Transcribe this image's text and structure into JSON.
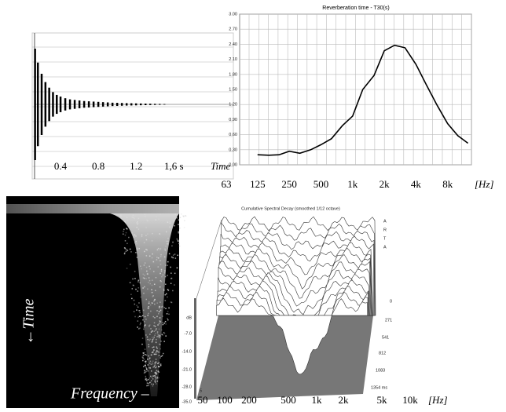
{
  "chart_data": [
    {
      "type": "impulse",
      "x": [
        0.13,
        0.16,
        0.2,
        0.24,
        0.28,
        0.32,
        0.36,
        0.4,
        0.45,
        0.5,
        0.55,
        0.6,
        0.65,
        0.7,
        0.75,
        0.8,
        0.85,
        0.9,
        0.95,
        1.0,
        1.05,
        1.1,
        1.15,
        1.2,
        1.25,
        1.3,
        1.35,
        1.4,
        1.45,
        1.5
      ],
      "values": [
        1.0,
        0.75,
        0.55,
        0.4,
        0.3,
        0.22,
        0.17,
        0.14,
        0.11,
        0.09,
        0.08,
        0.07,
        0.06,
        0.055,
        0.05,
        0.045,
        0.04,
        0.035,
        0.03,
        0.028,
        0.025,
        0.022,
        0.02,
        0.018,
        0.016,
        0.014,
        0.012,
        0.01,
        0.008,
        0.006
      ],
      "color": "#000000",
      "xlim": [
        0.1,
        2.23
      ],
      "ylim": [
        -1,
        1
      ],
      "xticks": [
        0.4,
        0.8,
        1.2,
        {
          "value": 1.6,
          "label": "1,6 s"
        }
      ],
      "xlabel": "Time"
    },
    {
      "type": "line",
      "title": "Reverberation time - T30(s)",
      "x": [
        125,
        160,
        200,
        250,
        315,
        400,
        500,
        630,
        800,
        1000,
        1250,
        1600,
        2000,
        2500,
        3150,
        4000,
        5000,
        6300,
        8000,
        10000,
        12500
      ],
      "values": [
        0.2,
        0.19,
        0.2,
        0.27,
        0.23,
        0.3,
        0.4,
        0.52,
        0.78,
        0.97,
        1.5,
        1.78,
        2.27,
        2.38,
        2.33,
        2.0,
        1.6,
        1.2,
        0.82,
        0.58,
        0.43
      ],
      "color": "#000000",
      "xscale": "log",
      "xlim": [
        63,
        16000
      ],
      "xticks": [
        63,
        125,
        250,
        500,
        {
          "value": 1000,
          "label": "1k"
        },
        {
          "value": 2000,
          "label": "2k"
        },
        {
          "value": 4000,
          "label": "4k"
        },
        {
          "value": 8000,
          "label": "8k"
        }
      ],
      "xlabel": "[Hz]",
      "ylim": [
        0,
        3
      ],
      "yticks": [
        {
          "value": 0,
          "label": "0.00"
        },
        {
          "value": 0.3,
          "label": "0.30"
        },
        {
          "value": 0.6,
          "label": "0.60"
        },
        {
          "value": 0.9,
          "label": "0.90"
        },
        {
          "value": 1.2,
          "label": "1.20"
        },
        {
          "value": 1.5,
          "label": "1.50"
        },
        {
          "value": 1.8,
          "label": "1.80"
        },
        {
          "value": 2.1,
          "label": "2.10"
        },
        {
          "value": 2.4,
          "label": "2.40"
        },
        {
          "value": 2.7,
          "label": "2.70"
        },
        {
          "value": 3,
          "label": "3.00"
        }
      ],
      "grid": true
    }
  ],
  "spectrogram": {
    "y_label": "←Time",
    "x_label": "Frequency –"
  },
  "waterfall": {
    "title": "Cumulative Spectral Decay (smoothed 1/12 octave)",
    "db_labels": [
      "dB",
      "-7.0",
      "-14.0",
      "-21.0",
      "-28.0",
      "-35.0"
    ],
    "time_labels": [
      "0",
      "271",
      "541",
      "812",
      "1083",
      "1354 ms"
    ],
    "brand": [
      "A",
      "R",
      "T",
      "A"
    ],
    "corner_label": "5",
    "freq_labels": [
      "50",
      "100",
      "200",
      "500",
      "1k",
      "2k",
      "5k",
      "10k"
    ],
    "freq_unit": "[Hz]"
  }
}
